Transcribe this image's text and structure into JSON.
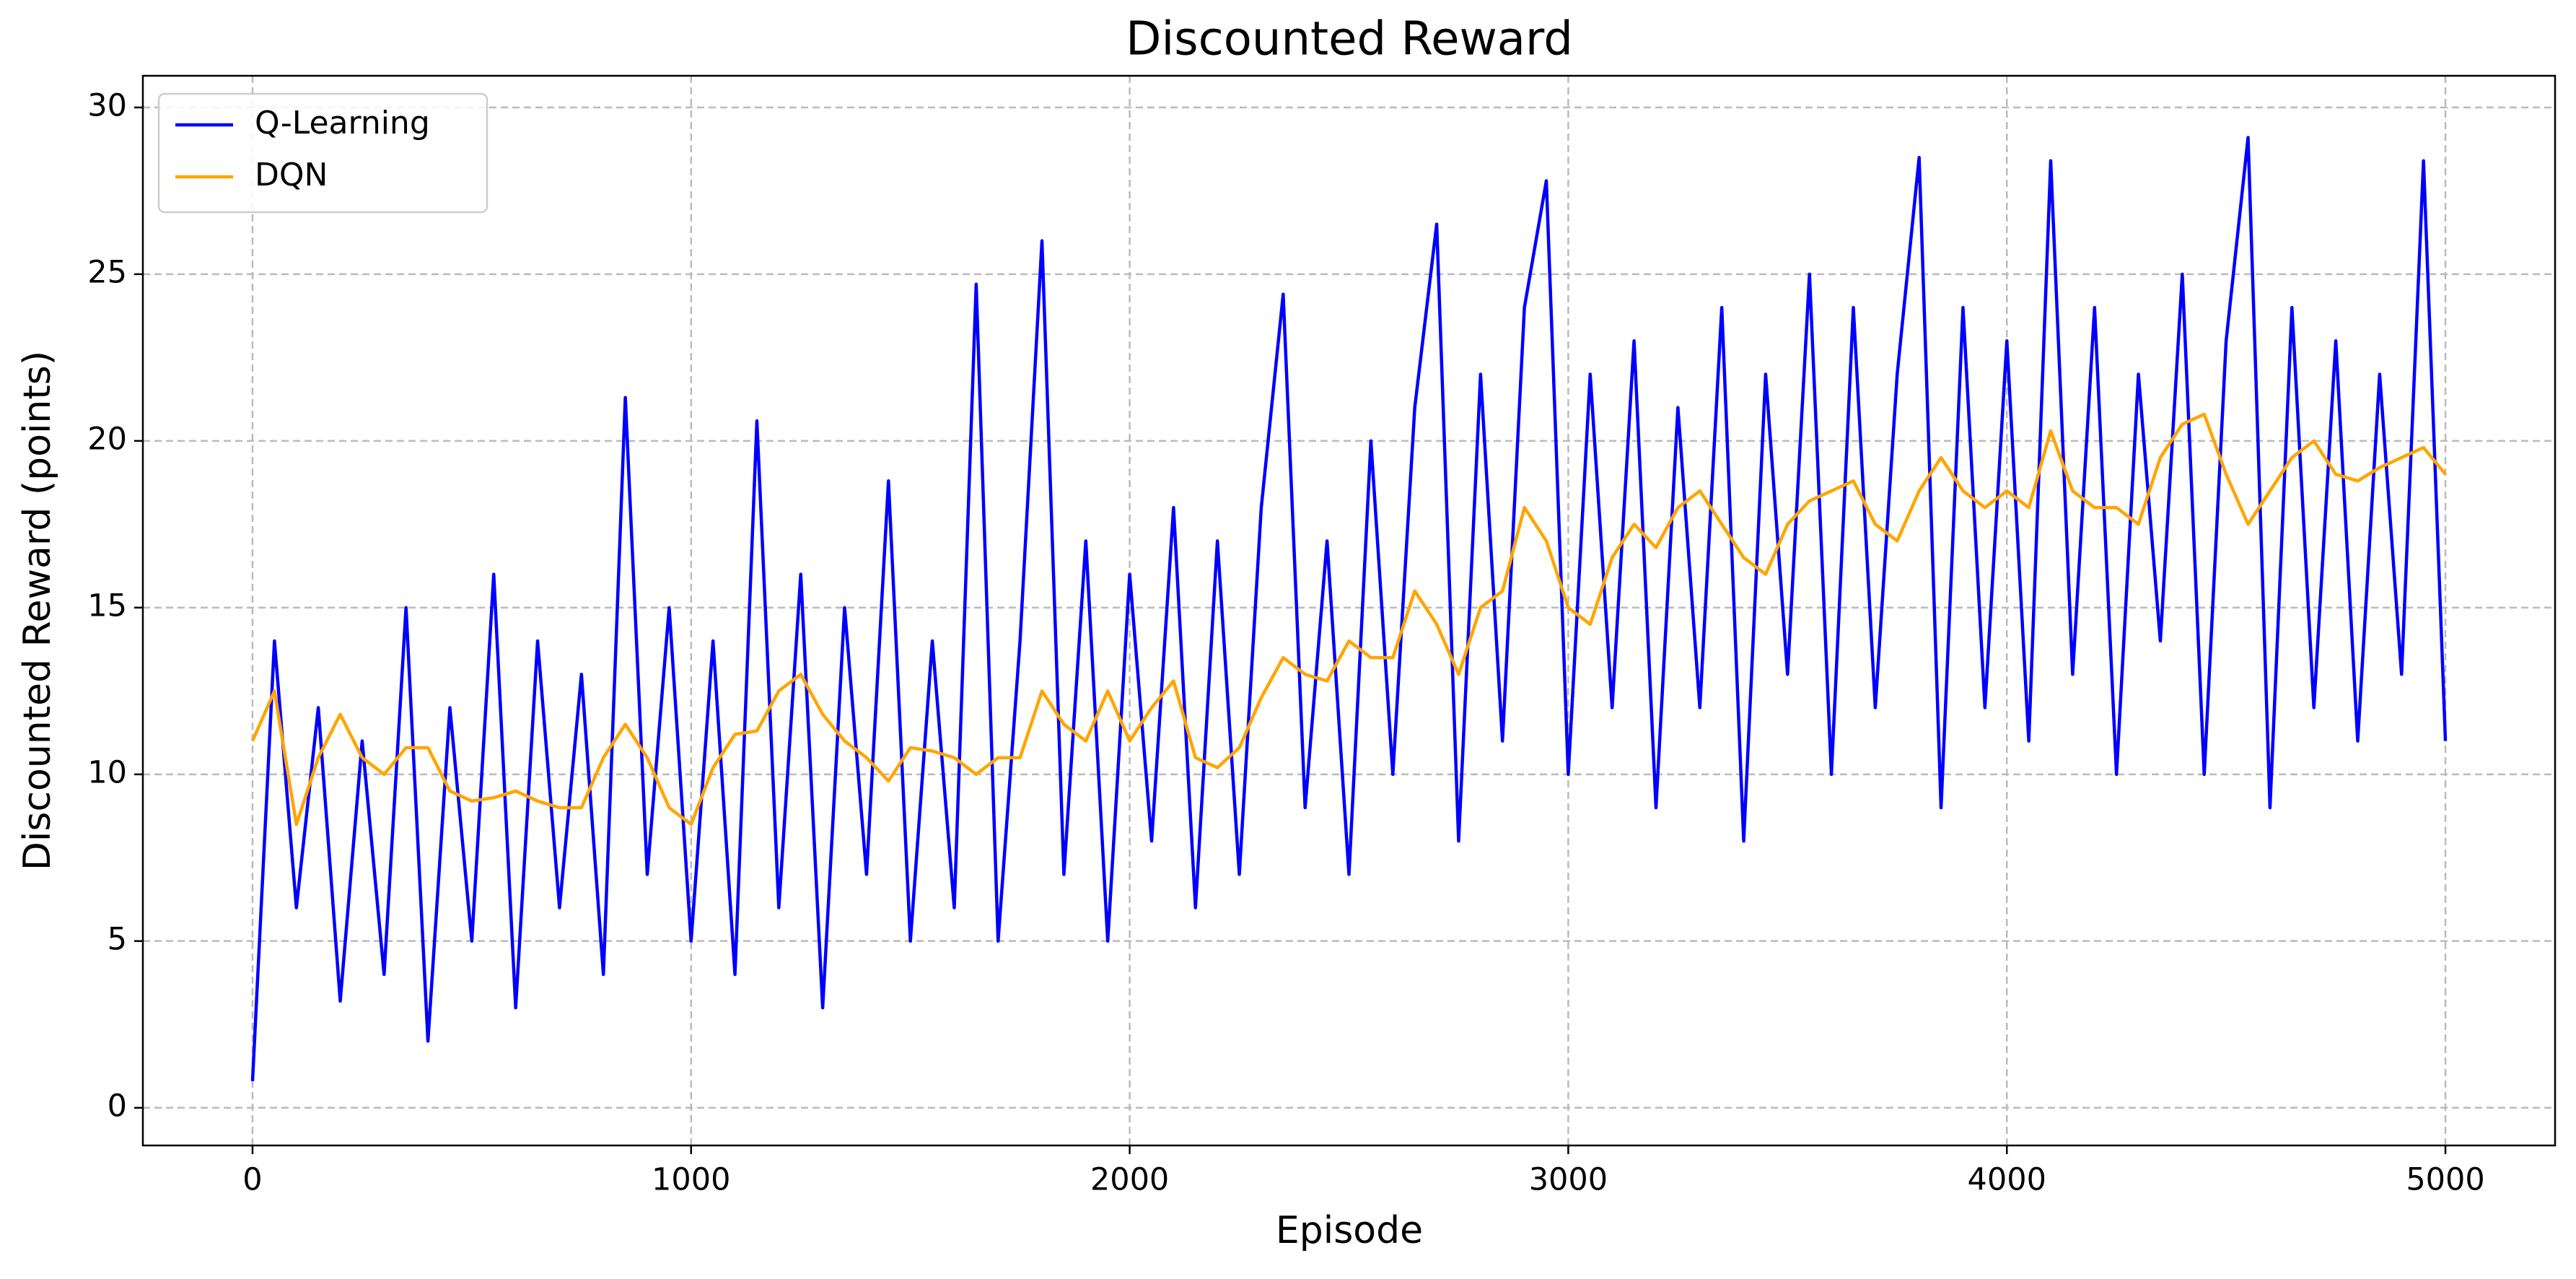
{
  "chart_data": {
    "type": "line",
    "title": "Discounted Reward",
    "xlabel": "Episode",
    "ylabel": "Discounted Reward (points)",
    "x": [
      0,
      50,
      100,
      150,
      200,
      250,
      300,
      350,
      400,
      450,
      500,
      550,
      600,
      650,
      700,
      750,
      800,
      850,
      900,
      950,
      1000,
      1050,
      1100,
      1150,
      1200,
      1250,
      1300,
      1350,
      1400,
      1450,
      1500,
      1550,
      1600,
      1650,
      1700,
      1750,
      1800,
      1850,
      1900,
      1950,
      2000,
      2050,
      2100,
      2150,
      2200,
      2250,
      2300,
      2350,
      2400,
      2450,
      2500,
      2550,
      2600,
      2650,
      2700,
      2750,
      2800,
      2850,
      2900,
      2950,
      3000,
      3050,
      3100,
      3150,
      3200,
      3250,
      3300,
      3350,
      3400,
      3450,
      3500,
      3550,
      3600,
      3650,
      3700,
      3750,
      3800,
      3850,
      3900,
      3950,
      4000,
      4050,
      4100,
      4150,
      4200,
      4250,
      4300,
      4350,
      4400,
      4450,
      4500,
      4550,
      4600,
      4650,
      4700,
      4750,
      4800,
      4850,
      4900,
      4950,
      5000
    ],
    "series": [
      {
        "name": "Q-Learning",
        "color": "#0000ff",
        "values": [
          0.8,
          14,
          6,
          12,
          3.2,
          11,
          4,
          15,
          2,
          12,
          5,
          16,
          3,
          14,
          6,
          13,
          4,
          21.3,
          7,
          15,
          5,
          14,
          4,
          20.6,
          6,
          16,
          3,
          15,
          7,
          18.8,
          5,
          14,
          6,
          24.7,
          5,
          14,
          26,
          7,
          17,
          5,
          16,
          8,
          18,
          6,
          17,
          7,
          18,
          24.4,
          9,
          17,
          7,
          20,
          10,
          21,
          26.5,
          8,
          22,
          11,
          24,
          27.8,
          10,
          22,
          12,
          23,
          9,
          21,
          12,
          24,
          8,
          22,
          13,
          25,
          10,
          24,
          12,
          22,
          28.5,
          9,
          24,
          12,
          23,
          11,
          28.4,
          13,
          24,
          10,
          22,
          14,
          25,
          10,
          23,
          29.1,
          9,
          24,
          12,
          23,
          11,
          22,
          13,
          28.4,
          11
        ]
      },
      {
        "name": "DQN",
        "color": "#ffa500",
        "values": [
          11,
          12.5,
          8.5,
          10.5,
          11.8,
          10.5,
          10,
          10.8,
          10.8,
          9.5,
          9.2,
          9.3,
          9.5,
          9.2,
          9.0,
          9.0,
          10.5,
          11.5,
          10.5,
          9.0,
          8.5,
          10.2,
          11.2,
          11.3,
          12.5,
          13.0,
          11.8,
          11.0,
          10.5,
          9.8,
          10.8,
          10.7,
          10.5,
          10.0,
          10.5,
          10.5,
          12.5,
          11.5,
          11.0,
          12.5,
          11.0,
          12.0,
          12.8,
          10.5,
          10.2,
          10.8,
          12.3,
          13.5,
          13.0,
          12.8,
          14.0,
          13.5,
          13.5,
          15.5,
          14.5,
          13.0,
          15.0,
          15.5,
          18.0,
          17.0,
          15.0,
          14.5,
          16.5,
          17.5,
          16.8,
          18.0,
          18.5,
          17.5,
          16.5,
          16.0,
          17.5,
          18.2,
          18.5,
          18.8,
          17.5,
          17.0,
          18.5,
          19.5,
          18.5,
          18.0,
          18.5,
          18.0,
          20.3,
          18.5,
          18.0,
          18.0,
          17.5,
          19.5,
          20.5,
          20.8,
          19.0,
          17.5,
          18.5,
          19.5,
          20.0,
          19.0,
          18.8,
          19.2,
          19.5,
          19.8,
          19.0
        ]
      }
    ],
    "xlim": [
      -250,
      5250
    ],
    "ylim": [
      -1.13,
      30.95
    ],
    "xticks": [
      0,
      1000,
      2000,
      3000,
      4000,
      5000
    ],
    "yticks": [
      0,
      5,
      10,
      15,
      20,
      25,
      30
    ],
    "grid": true,
    "legend": "upper left"
  }
}
